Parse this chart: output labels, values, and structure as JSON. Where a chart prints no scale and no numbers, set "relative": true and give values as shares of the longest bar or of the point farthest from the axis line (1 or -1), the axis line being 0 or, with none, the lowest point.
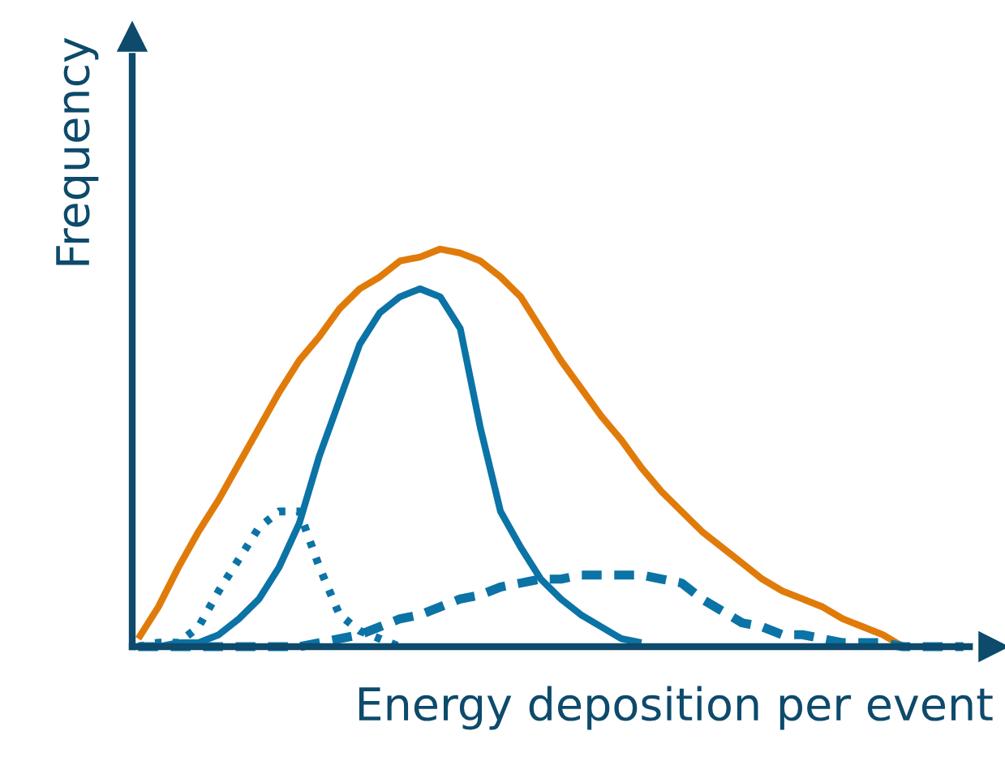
{
  "chart_data": {
    "type": "line",
    "relative": true,
    "xlabel": "Energy deposition per event",
    "ylabel": "Frequency",
    "marker": "none",
    "categories": [
      null,
      null,
      null,
      null,
      null,
      null,
      null,
      null,
      null,
      null,
      null,
      null,
      null,
      null,
      null,
      null,
      null,
      null,
      null,
      null,
      null,
      null,
      null,
      null,
      null,
      null,
      null,
      null,
      null,
      null,
      null,
      null,
      null,
      null,
      null,
      null,
      null,
      null,
      null,
      null,
      null,
      null
    ],
    "series": [
      {
        "color": "#e07b0a",
        "line_style": "solid",
        "values": [
          0.02,
          0.1,
          0.2,
          0.29,
          0.37,
          0.46,
          0.55,
          0.64,
          0.72,
          0.78,
          0.85,
          0.9,
          0.93,
          0.97,
          0.98,
          1.0,
          0.99,
          0.97,
          0.93,
          0.88,
          0.8,
          0.72,
          0.65,
          0.58,
          0.52,
          0.45,
          0.39,
          0.34,
          0.29,
          0.25,
          0.21,
          0.17,
          0.14,
          0.12,
          0.1,
          0.07,
          0.05,
          0.03,
          0.0,
          null,
          null,
          null
        ]
      },
      {
        "color": "#0b73a6",
        "line_style": "solid",
        "values": [
          0,
          0.0,
          0.01,
          0.01,
          0.03,
          0.07,
          0.12,
          0.2,
          0.31,
          0.48,
          0.62,
          0.76,
          0.84,
          0.88,
          0.9,
          0.88,
          0.8,
          0.55,
          0.34,
          0.25,
          0.17,
          0.12,
          0.08,
          0.05,
          0.02,
          0.01,
          null,
          null,
          null,
          null,
          null,
          null,
          null,
          null,
          null,
          null,
          null,
          null,
          null,
          null,
          null,
          null
        ]
      },
      {
        "color": "#0b73a6",
        "line_style": "dotted",
        "values": [
          0,
          0.01,
          0.01,
          0.05,
          0.14,
          0.22,
          0.3,
          0.34,
          0.34,
          0.2,
          0.08,
          0.04,
          0.02,
          0.0,
          null,
          null,
          null,
          null,
          null,
          null,
          null,
          null,
          null,
          null,
          null,
          null,
          null,
          null,
          null,
          null,
          null,
          null,
          null,
          null,
          null,
          null,
          null,
          null,
          null,
          null,
          null,
          null
        ]
      },
      {
        "color": "#0b73a6",
        "line_style": "dashed",
        "values": [
          0,
          0,
          0,
          0,
          0,
          0,
          0,
          0,
          0,
          0.01,
          0.02,
          0.03,
          0.05,
          0.07,
          0.08,
          0.1,
          0.12,
          0.13,
          0.15,
          0.16,
          0.17,
          0.17,
          0.18,
          0.18,
          0.18,
          0.18,
          0.17,
          0.16,
          0.12,
          0.09,
          0.06,
          0.05,
          0.03,
          0.03,
          0.02,
          0.01,
          0.01,
          0.01,
          0.0,
          0,
          0,
          0
        ]
      }
    ]
  }
}
